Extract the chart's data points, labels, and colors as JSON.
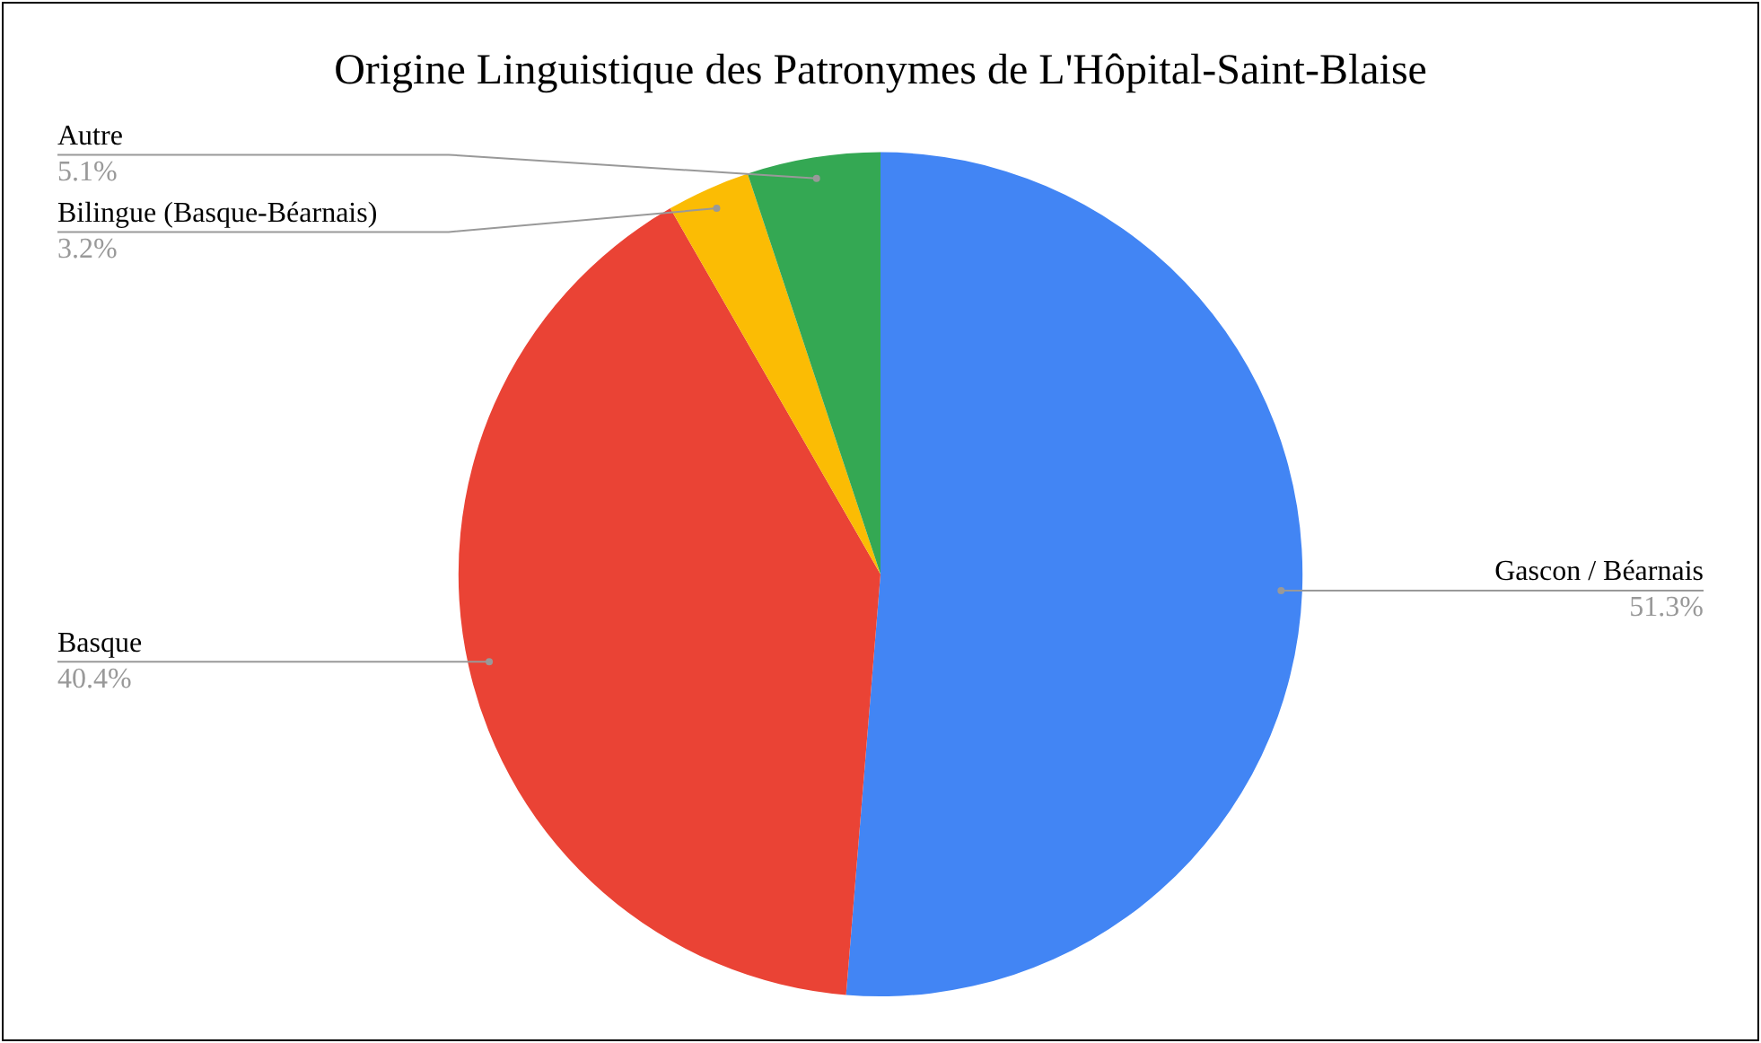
{
  "chart_data": {
    "type": "pie",
    "title": "Origine Linguistique des Patronymes de L'Hôpital-Saint-Blaise",
    "categories": [
      "Gascon / Béarnais",
      "Basque",
      "Bilingue (Basque-Béarnais)",
      "Autre"
    ],
    "values": [
      51.3,
      40.4,
      3.2,
      5.1
    ],
    "colors": [
      "#4285f4",
      "#ea4335",
      "#fbbc04",
      "#34a853"
    ],
    "value_labels": [
      "51.3%",
      "40.4%",
      "3.2%",
      "5.1%"
    ],
    "legend": false
  }
}
